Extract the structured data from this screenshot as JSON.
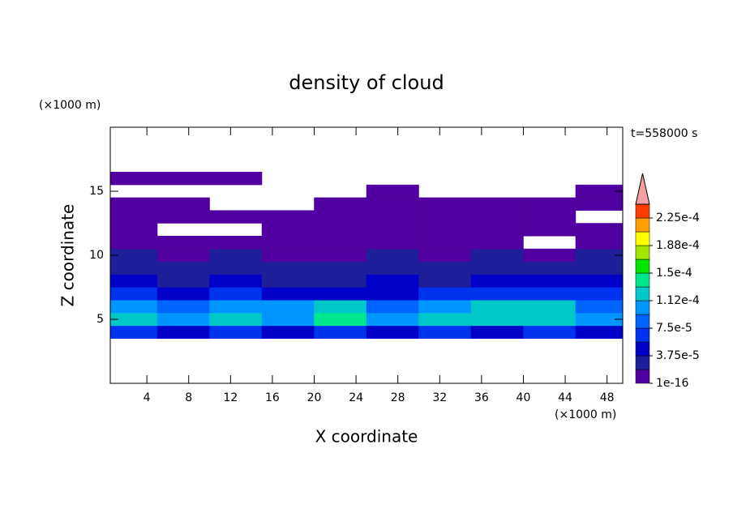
{
  "chart_data": {
    "type": "contour",
    "title": "density of cloud",
    "x_label": "X coordinate",
    "y_label": "Z coordinate",
    "x_unit": "(×1000 m)",
    "y_unit": "(×1000 m)",
    "annotation": "t=558000 s",
    "xlim": [
      0.5,
      49.5
    ],
    "ylim": [
      0,
      20
    ],
    "xticks": [
      4,
      8,
      12,
      16,
      20,
      24,
      28,
      32,
      36,
      40,
      44,
      48
    ],
    "yticks": [
      5,
      10,
      15
    ],
    "x": [
      2.5,
      7.5,
      12.5,
      17.5,
      22.5,
      27.5,
      32.5,
      37.5,
      42.5,
      47.5
    ],
    "z": [
      4,
      5,
      6,
      7,
      8,
      9,
      10,
      11,
      12,
      13,
      14,
      15,
      16
    ],
    "values": [
      [
        6e-05,
        5e-05,
        6e-05,
        5e-05,
        6e-05,
        5e-05,
        6e-05,
        5e-05,
        6e-05,
        5e-05
      ],
      [
        0.00012,
        0.00011,
        0.00012,
        0.00011,
        0.00014,
        0.0001,
        0.00013,
        0.00012,
        0.00012,
        0.0001
      ],
      [
        0.0001,
        9e-05,
        0.00011,
        0.0001,
        0.00013,
        8e-05,
        0.00011,
        0.00012,
        0.00013,
        9e-05
      ],
      [
        6e-05,
        5e-05,
        6e-05,
        5e-05,
        5e-05,
        5e-05,
        6e-05,
        6e-05,
        6e-05,
        6e-05
      ],
      [
        4e-05,
        3e-05,
        4e-05,
        3e-05,
        3e-05,
        4e-05,
        3e-05,
        4e-05,
        4e-05,
        4e-05
      ],
      [
        3e-05,
        2e-05,
        3e-05,
        2e-05,
        2e-05,
        3e-05,
        2e-05,
        3e-05,
        2e-05,
        3e-05
      ],
      [
        2e-05,
        1e-05,
        2e-05,
        1e-05,
        1e-05,
        2e-05,
        1e-05,
        2e-05,
        1e-05,
        2e-05
      ],
      [
        1e-05,
        1e-05,
        1e-05,
        1e-05,
        1e-05,
        1e-05,
        1e-05,
        1e-05,
        null,
        1e-05
      ],
      [
        1e-05,
        null,
        null,
        1e-05,
        1e-05,
        1e-05,
        1e-05,
        1e-05,
        1e-05,
        1e-05
      ],
      [
        1e-05,
        1e-05,
        1e-05,
        1e-05,
        1e-05,
        1e-05,
        1e-05,
        1e-05,
        1e-05,
        null
      ],
      [
        1e-05,
        1e-05,
        null,
        null,
        1e-05,
        1e-05,
        1e-05,
        1e-05,
        1e-05,
        1e-05
      ],
      [
        null,
        null,
        null,
        null,
        null,
        1e-05,
        null,
        null,
        null,
        1e-05
      ],
      [
        1e-05,
        1e-05,
        1e-05,
        null,
        null,
        null,
        null,
        null,
        null,
        null
      ]
    ],
    "levels": [
      1e-16,
      1.875e-05,
      3.75e-05,
      5.625e-05,
      7.5e-05,
      9.375e-05,
      0.0001125,
      0.00013125,
      0.00015,
      0.00016875,
      0.0001875,
      0.00020625,
      0.000225,
      0.00024375
    ],
    "colors": [
      "#5000a0",
      "#1e1e9b",
      "#0000c8",
      "#0032f0",
      "#0064ff",
      "#0096ff",
      "#00c8c8",
      "#00e68c",
      "#00e600",
      "#a0e600",
      "#ffff00",
      "#ffa000",
      "#ff3c00"
    ],
    "over_color": "#f4a0a0",
    "colorbar_ticks": [
      {
        "value": 1e-16,
        "label": "1e-16"
      },
      {
        "value": 3.75e-05,
        "label": "3.75e-5"
      },
      {
        "value": 7.5e-05,
        "label": "7.5e-5"
      },
      {
        "value": 0.0001125,
        "label": "1.12e-4"
      },
      {
        "value": 0.00015,
        "label": "1.5e-4"
      },
      {
        "value": 0.0001875,
        "label": "1.88e-4"
      },
      {
        "value": 0.000225,
        "label": "2.25e-4"
      }
    ]
  }
}
